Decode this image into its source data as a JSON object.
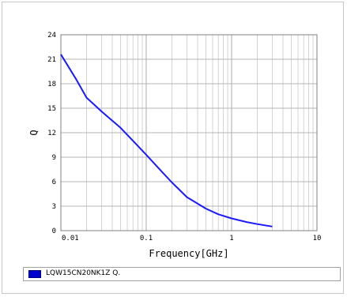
{
  "chart_data": {
    "type": "line",
    "x_scale": "log",
    "xlim": [
      0.01,
      10
    ],
    "ylim": [
      0,
      24
    ],
    "xlabel": "Frequency[GHz]",
    "ylabel": "Q",
    "x_ticks": [
      "0.01",
      "0.1",
      "1",
      "10"
    ],
    "y_ticks": [
      "0",
      "3",
      "6",
      "9",
      "12",
      "15",
      "18",
      "21",
      "24"
    ],
    "grid": true,
    "legend_position": "bottom",
    "series": [
      {
        "name": "LQW15CN20NK1Z Q.",
        "color": "#1a1aff",
        "x": [
          0.01,
          0.015,
          0.02,
          0.03,
          0.05,
          0.07,
          0.1,
          0.15,
          0.2,
          0.3,
          0.5,
          0.7,
          1,
          1.5,
          2,
          3
        ],
        "y": [
          21.6,
          18.6,
          16.3,
          14.6,
          12.6,
          11.0,
          9.3,
          7.3,
          5.9,
          4.1,
          2.7,
          2.0,
          1.5,
          1.05,
          0.8,
          0.5
        ]
      }
    ]
  }
}
